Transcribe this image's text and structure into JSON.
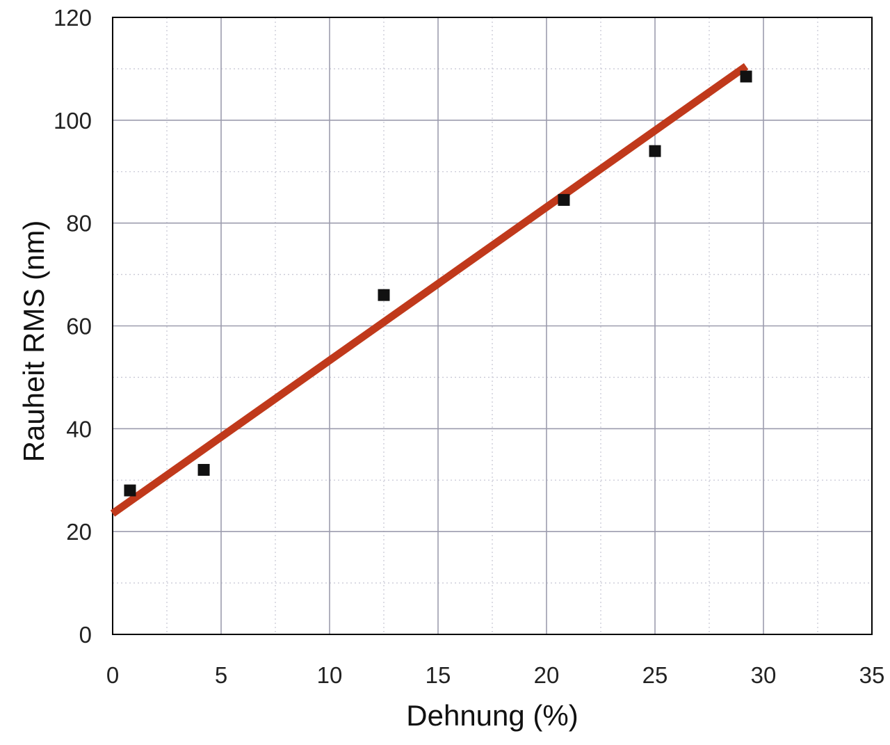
{
  "chart_data": {
    "type": "scatter",
    "xlabel": "Dehnung (%)",
    "ylabel": "Rauheit RMS (nm)",
    "xlim": [
      0,
      35
    ],
    "ylim": [
      0,
      120
    ],
    "xticks": [
      0,
      5,
      10,
      15,
      20,
      25,
      30,
      35
    ],
    "yticks": [
      0,
      20,
      40,
      60,
      80,
      100,
      120
    ],
    "xtick_labels": [
      "0",
      "5",
      "10",
      "15",
      "20",
      "25",
      "30",
      "35"
    ],
    "ytick_labels": [
      "0",
      "20",
      "40",
      "60",
      "80",
      "100",
      "120"
    ],
    "grid": true,
    "legend": "none",
    "series": [
      {
        "type": "scatter",
        "marker": "square",
        "color": "#111111",
        "points": [
          {
            "x": 0.8,
            "y": 28.0
          },
          {
            "x": 4.2,
            "y": 32.0
          },
          {
            "x": 12.5,
            "y": 66.0
          },
          {
            "x": 20.8,
            "y": 84.5
          },
          {
            "x": 25.0,
            "y": 94.0
          },
          {
            "x": 29.2,
            "y": 108.5
          }
        ]
      },
      {
        "type": "line",
        "role": "linear-fit",
        "color": "#c0391b",
        "points": [
          {
            "x": 0,
            "y": 23.5
          },
          {
            "x": 29.2,
            "y": 110.5
          }
        ]
      }
    ]
  }
}
